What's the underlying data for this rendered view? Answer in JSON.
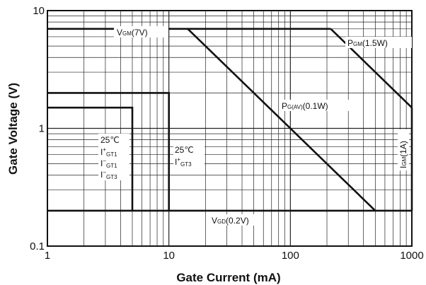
{
  "chart_data": {
    "type": "line",
    "xscale": "log",
    "yscale": "log",
    "xlim": [
      1,
      1000
    ],
    "ylim": [
      0.1,
      10
    ],
    "grid": true,
    "xlabel": "Gate Current (mA)",
    "ylabel": "Gate Voltage (V)",
    "x_ticks": [
      {
        "value": 1,
        "label": "1"
      },
      {
        "value": 10,
        "label": "10"
      },
      {
        "value": 100,
        "label": "100"
      },
      {
        "value": 1000,
        "label": "1000"
      }
    ],
    "y_ticks": [
      {
        "value": 0.1,
        "label": "0.1"
      },
      {
        "value": 1,
        "label": "1"
      },
      {
        "value": 10,
        "label": "10"
      }
    ],
    "series": [
      {
        "id": "vgm",
        "points": [
          [
            1,
            7
          ],
          [
            215,
            7
          ]
        ]
      },
      {
        "id": "pgm",
        "points": [
          [
            215,
            7
          ],
          [
            1000,
            1.5
          ]
        ]
      },
      {
        "id": "igm",
        "points": [
          [
            1000,
            1.5
          ],
          [
            1000,
            0.2
          ]
        ]
      },
      {
        "id": "vgd",
        "points": [
          [
            1,
            0.2
          ],
          [
            1000,
            0.2
          ]
        ]
      },
      {
        "id": "pgav",
        "points": [
          [
            14.3,
            7
          ],
          [
            500,
            0.2
          ]
        ]
      },
      {
        "id": "box-25c-3",
        "points": [
          [
            1,
            1.5
          ],
          [
            5,
            1.5
          ],
          [
            5,
            0.2
          ]
        ]
      },
      {
        "id": "box-25c-1",
        "points": [
          [
            1,
            2
          ],
          [
            10,
            2
          ],
          [
            10,
            0.2
          ]
        ]
      }
    ],
    "annotations": {
      "vgm": {
        "main": "V",
        "sub": "GM",
        "tail": "(7V)"
      },
      "pgm": {
        "main": "P",
        "sub": "GM",
        "tail": "(1.5W)"
      },
      "pgav": {
        "main": "P",
        "sub": "G(AV)",
        "tail": "(0.1W)"
      },
      "vgd": {
        "main": "V",
        "sub": "GD",
        "tail": "(0.2V)"
      },
      "igm": {
        "main": "I",
        "sub": "GM",
        "tail": "(1A)"
      },
      "box_left": {
        "temp": "25℃",
        "lines": [
          {
            "main": "I",
            "sup": "+",
            "sub": "GT1"
          },
          {
            "main": "I",
            "sup": "−",
            "sub": "GT1"
          },
          {
            "main": "I",
            "sup": "−",
            "sub": "GT3"
          }
        ]
      },
      "box_right": {
        "temp": "25℃",
        "lines": [
          {
            "main": "I",
            "sup": "+",
            "sub": "GT3"
          }
        ]
      }
    }
  }
}
